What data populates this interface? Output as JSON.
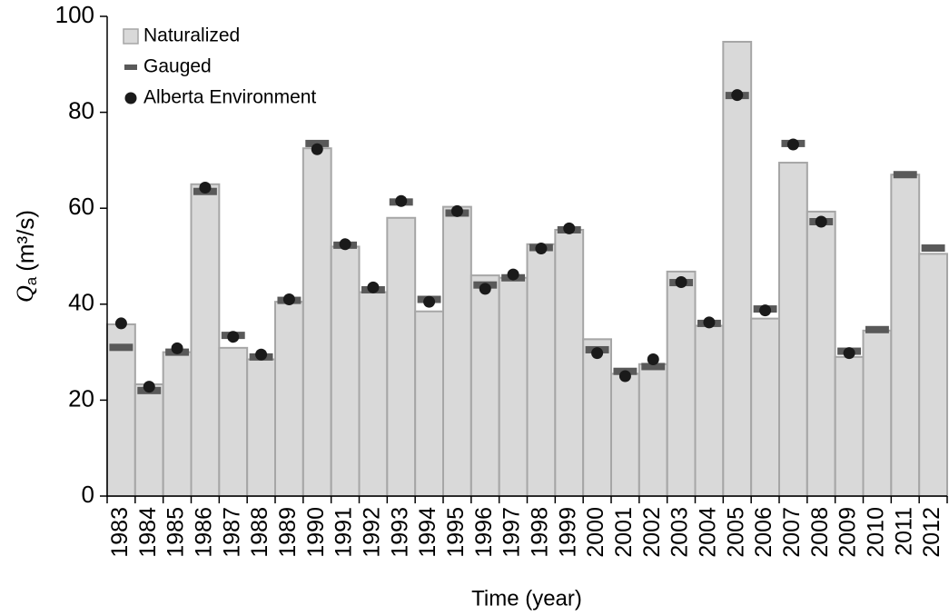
{
  "chart_data": {
    "type": "bar",
    "x_label": "Time (year)",
    "y_label": {
      "symbol": "Q",
      "subscript": "a",
      "unit": "(m³/s)"
    },
    "categories": [
      "1983",
      "1984",
      "1985",
      "1986",
      "1987",
      "1988",
      "1989",
      "1990",
      "1991",
      "1992",
      "1993",
      "1994",
      "1995",
      "1996",
      "1997",
      "1998",
      "1999",
      "2000",
      "2001",
      "2002",
      "2003",
      "2004",
      "2005",
      "2006",
      "2007",
      "2008",
      "2009",
      "2010",
      "2011",
      "2012"
    ],
    "series": [
      {
        "name": "Naturalized",
        "type": "bar",
        "color": "#d9d9d9",
        "edge_color": "#a6a6a6",
        "values": [
          35.8,
          23.3,
          30,
          65,
          30.9,
          28.5,
          40.5,
          72.5,
          52,
          42.5,
          58,
          38.5,
          60.3,
          46,
          45.5,
          52.5,
          55.5,
          32.7,
          25.5,
          27.5,
          46.8,
          35.5,
          94.7,
          37,
          69.5,
          59.3,
          29,
          34.5,
          67,
          50.5
        ]
      },
      {
        "name": "Gauged",
        "type": "dash",
        "color": "#595959",
        "values": [
          31,
          22,
          30,
          63.5,
          33.5,
          29,
          40.8,
          73.5,
          52.3,
          43,
          61.3,
          41,
          59,
          44,
          45.5,
          51.8,
          55.5,
          30.5,
          26,
          27,
          44.5,
          36,
          83.5,
          39,
          73.5,
          57.2,
          30.2,
          34.7,
          67,
          51.7
        ]
      },
      {
        "name": "Alberta Environment",
        "type": "dot",
        "color": "#1a1a1a",
        "values": [
          36,
          22.8,
          30.8,
          64.3,
          33.2,
          29.5,
          41,
          72.3,
          52.5,
          43.5,
          61.5,
          40.5,
          59.4,
          43.2,
          46.2,
          51.6,
          55.8,
          29.8,
          25,
          28.5,
          44.6,
          36.2,
          83.6,
          38.7,
          73.3,
          57.2,
          29.8,
          null,
          null,
          null
        ]
      }
    ],
    "ylim": [
      0,
      100
    ],
    "yticks": [
      0,
      20,
      40,
      60,
      80,
      100
    ],
    "legend": "upper left"
  }
}
